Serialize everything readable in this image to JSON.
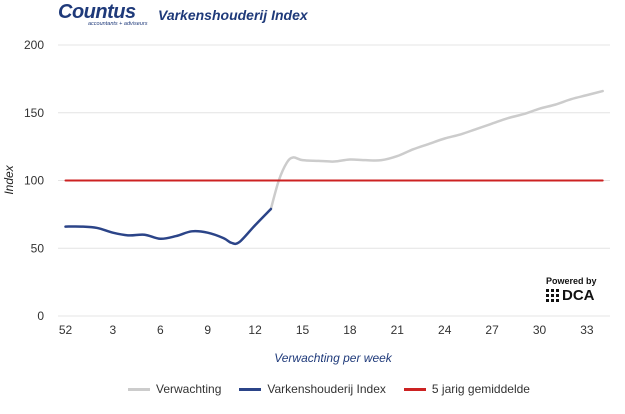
{
  "header": {
    "logo_text": "Countus",
    "logo_tagline": "accountants + adviseurs",
    "title": "Varkenshouderij Index"
  },
  "powered": {
    "label": "Powered by",
    "brand": "DCA"
  },
  "colors": {
    "forecast": "#cccccc",
    "index": "#2b4488",
    "average": "#cc2222",
    "grid": "#e4e4e4",
    "axis_title": "#1f3a7a"
  },
  "chart_data": {
    "type": "line",
    "title": "Varkenshouderij Index",
    "xlabel": "Verwachting per week",
    "ylabel": "Index",
    "ylim": [
      0,
      200
    ],
    "yticks": [
      0,
      50,
      100,
      150,
      200
    ],
    "grid": true,
    "legend_position": "bottom",
    "xtick_labels": [
      "52",
      "3",
      "6",
      "9",
      "12",
      "15",
      "18",
      "21",
      "24",
      "27",
      "30",
      "33"
    ],
    "series": [
      {
        "name": "Verwachting",
        "points": [
          [
            13,
            79
          ],
          [
            13.5,
            100
          ],
          [
            14,
            113
          ],
          [
            14.4,
            117
          ],
          [
            15,
            115
          ],
          [
            16,
            114.5
          ],
          [
            17,
            114
          ],
          [
            18,
            115.5
          ],
          [
            19,
            115
          ],
          [
            20,
            115
          ],
          [
            21,
            118
          ],
          [
            22,
            123
          ],
          [
            23,
            127
          ],
          [
            24,
            131
          ],
          [
            25,
            134
          ],
          [
            26,
            138
          ],
          [
            27,
            142
          ],
          [
            28,
            146
          ],
          [
            29,
            149
          ],
          [
            30,
            153
          ],
          [
            31,
            156
          ],
          [
            32,
            160
          ],
          [
            33,
            163
          ],
          [
            34,
            166
          ]
        ]
      },
      {
        "name": "Varkenshouderij Index",
        "points": [
          [
            0,
            66
          ],
          [
            1,
            66
          ],
          [
            2,
            65
          ],
          [
            3,
            61.5
          ],
          [
            4,
            59.5
          ],
          [
            5,
            60
          ],
          [
            6,
            57
          ],
          [
            7,
            59
          ],
          [
            8,
            62.5
          ],
          [
            9,
            61.5
          ],
          [
            10,
            57.5
          ],
          [
            10.5,
            54
          ],
          [
            11,
            54.5
          ],
          [
            12,
            67
          ],
          [
            13,
            79
          ]
        ]
      },
      {
        "name": "5 jarig gemiddelde",
        "points": [
          [
            0,
            100
          ],
          [
            34,
            100
          ]
        ]
      }
    ]
  }
}
